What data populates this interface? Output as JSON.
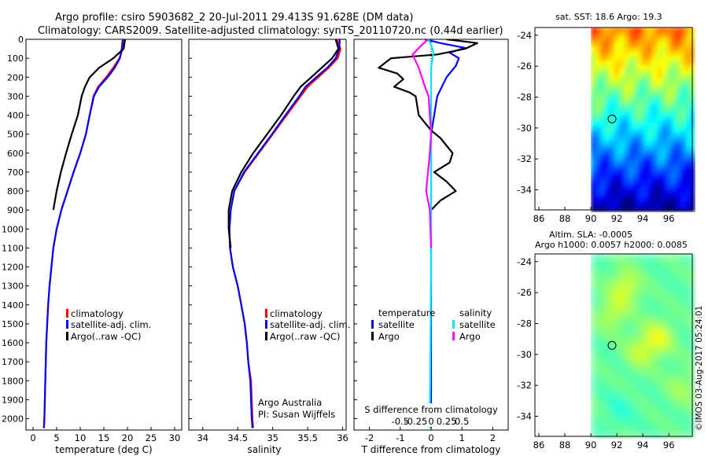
{
  "title": {
    "line1": "Argo profile: csiro 5903682_2 20-Jul-2011 29.413S 91.628E (DM data)",
    "line2": "Climatology: CARS2009. Satellite-adjusted climatology: synTS_20110720.nc (0.44d earlier)"
  },
  "colors": {
    "climatology": "#ff0000",
    "satellite": "#0000ff",
    "argo": "#000000",
    "salinity_satellite": "#00e5ee",
    "salinity_argo": "#ff00ff"
  },
  "watermark": "©IMOS 03-Aug-2017 05:24:01",
  "chart_data": [
    {
      "id": "temperature",
      "type": "line",
      "xlabel": "temperature (deg C)",
      "xlim": [
        -1.5,
        31.5
      ],
      "xticks": [
        0,
        5,
        10,
        15,
        20,
        25,
        30
      ],
      "ylim": [
        2060,
        0
      ],
      "yticks": [
        0,
        100,
        200,
        300,
        400,
        500,
        600,
        700,
        800,
        900,
        1000,
        1100,
        1200,
        1300,
        1400,
        1500,
        1600,
        1700,
        1800,
        1900,
        2000
      ],
      "legend": [
        "climatology",
        "satellite-adj. clim.",
        "Argo(..raw -QC)"
      ],
      "series": [
        {
          "name": "climatology",
          "color": "#ff0000",
          "x": [
            19.4,
            19.0,
            18.3,
            17.0,
            15.5,
            13.8,
            12.8,
            12.0,
            11.2,
            10.0,
            8.6,
            7.3,
            6.0,
            5.0,
            4.3,
            3.9,
            3.5,
            3.2,
            3.0,
            2.8,
            2.6,
            2.4,
            2.3
          ],
          "y": [
            0,
            50,
            100,
            150,
            200,
            250,
            300,
            400,
            500,
            600,
            700,
            800,
            900,
            1000,
            1100,
            1200,
            1300,
            1400,
            1500,
            1600,
            1800,
            2000,
            2050
          ]
        },
        {
          "name": "satellite-adj. clim.",
          "color": "#0000ff",
          "x": [
            19.0,
            18.8,
            18.4,
            17.3,
            15.8,
            14.0,
            12.9,
            12.0,
            11.2,
            10.0,
            8.6,
            7.3,
            6.0,
            5.0,
            4.3,
            3.9,
            3.5,
            3.2,
            3.0,
            2.8,
            2.6,
            2.4,
            2.3
          ],
          "y": [
            0,
            50,
            100,
            150,
            200,
            250,
            300,
            400,
            500,
            600,
            700,
            800,
            900,
            1000,
            1100,
            1200,
            1300,
            1400,
            1500,
            1600,
            1800,
            2000,
            2050
          ]
        },
        {
          "name": "Argo",
          "color": "#000000",
          "x": [
            19.5,
            19.2,
            17.0,
            14.0,
            12.0,
            11.0,
            10.3,
            9.5,
            8.2,
            7.0,
            5.9,
            5.0,
            4.3
          ],
          "y": [
            0,
            50,
            100,
            150,
            200,
            250,
            300,
            400,
            500,
            600,
            700,
            800,
            900
          ]
        }
      ]
    },
    {
      "id": "salinity",
      "type": "line",
      "xlabel": "salinity",
      "xlim": [
        33.8,
        36.05
      ],
      "xticks": [
        34,
        34.5,
        35,
        35.5,
        36
      ],
      "xticklabels": [
        "34",
        "34.5",
        "35",
        "35.5",
        "36"
      ],
      "ylim": [
        2060,
        0
      ],
      "legend": [
        "climatology",
        "satellite-adj. clim.",
        "Argo(..raw -QC)"
      ],
      "annotation": {
        "line1": "Argo Australia",
        "line2": "PI: Susan Wijffels"
      },
      "series": [
        {
          "name": "climatology",
          "color": "#ff0000",
          "x": [
            35.92,
            35.97,
            35.93,
            35.8,
            35.65,
            35.5,
            35.4,
            35.2,
            35.0,
            34.8,
            34.6,
            34.45,
            34.4,
            34.38,
            34.39,
            34.43,
            34.5,
            34.55,
            34.6,
            34.63,
            34.65,
            34.69,
            34.71,
            34.72
          ],
          "y": [
            0,
            50,
            100,
            150,
            200,
            250,
            300,
            400,
            500,
            600,
            700,
            800,
            900,
            1000,
            1100,
            1200,
            1300,
            1400,
            1500,
            1600,
            1700,
            1800,
            2000,
            2050
          ]
        },
        {
          "name": "satellite-adj. clim.",
          "color": "#0000ff",
          "x": [
            35.96,
            35.95,
            35.9,
            35.78,
            35.62,
            35.47,
            35.38,
            35.18,
            34.99,
            34.79,
            34.59,
            34.45,
            34.4,
            34.38,
            34.39,
            34.43,
            34.5,
            34.55,
            34.6,
            34.63,
            34.65,
            34.68,
            34.7,
            34.71
          ],
          "y": [
            0,
            50,
            100,
            150,
            200,
            250,
            300,
            400,
            500,
            600,
            700,
            800,
            900,
            1000,
            1100,
            1200,
            1300,
            1400,
            1500,
            1600,
            1700,
            1800,
            2000,
            2050
          ]
        },
        {
          "name": "Argo",
          "color": "#000000",
          "x": [
            35.9,
            35.94,
            35.85,
            35.7,
            35.55,
            35.4,
            35.3,
            35.12,
            34.92,
            34.72,
            34.55,
            34.42,
            34.37,
            34.37,
            34.4
          ],
          "y": [
            0,
            50,
            100,
            150,
            200,
            250,
            300,
            400,
            500,
            600,
            700,
            800,
            900,
            1000,
            1100
          ]
        }
      ]
    },
    {
      "id": "differences",
      "type": "line",
      "xlabel": "T difference from climatology",
      "xlabel_top": "S difference from climatology",
      "xlim": [
        -2.5,
        2.5
      ],
      "xticks": [
        -2,
        -1,
        0,
        1,
        2
      ],
      "xticks_top": [
        -0.5,
        -0.25,
        0,
        0.25,
        0.5
      ],
      "ylim": [
        2060,
        0
      ],
      "legend": {
        "temperature_heading": "temperature",
        "salinity_heading": "salinity",
        "t_satellite": "satellite",
        "t_argo": "Argo",
        "s_satellite": "satellite",
        "s_argo": "Argo"
      },
      "series": [
        {
          "name": "T satellite",
          "color": "#0000ff",
          "x": [
            -0.2,
            0.3,
            1.1,
            0.6,
            0.9,
            0.8,
            0.5,
            0.2,
            0.0,
            0.0,
            0.0,
            0.0,
            0.0
          ],
          "y": [
            0,
            20,
            45,
            70,
            100,
            140,
            200,
            300,
            500,
            900,
            1200,
            1600,
            2050
          ]
        },
        {
          "name": "T Argo",
          "color": "#000000",
          "x": [
            0.5,
            1.5,
            1.1,
            0.2,
            -1.3,
            -1.7,
            -1.1,
            -0.9,
            -1.2,
            -0.7,
            -0.5,
            -0.4,
            0.0,
            0.3,
            0.7,
            0.6,
            0.1,
            0.5,
            0.8,
            0.3,
            0.0
          ],
          "y": [
            0,
            20,
            50,
            80,
            100,
            150,
            180,
            210,
            250,
            280,
            300,
            400,
            480,
            520,
            600,
            650,
            700,
            750,
            800,
            850,
            900
          ]
        },
        {
          "name": "S satellite",
          "color": "#00e5ee",
          "x": [
            -0.04,
            0.0,
            0.04,
            0.0,
            0.0,
            0.0,
            0.0,
            0.0,
            -0.01,
            -0.02,
            -0.02
          ],
          "y": [
            0,
            30,
            70,
            150,
            300,
            600,
            900,
            1200,
            1600,
            2000,
            2050
          ]
        },
        {
          "name": "S Argo",
          "color": "#ff00ff",
          "x": [
            -0.05,
            -0.15,
            -0.3,
            -0.2,
            -0.1,
            -0.04,
            -0.02,
            0.0,
            -0.02,
            -0.05,
            -0.08,
            -0.02,
            0.0
          ],
          "y": [
            0,
            30,
            80,
            150,
            250,
            300,
            400,
            500,
            600,
            700,
            800,
            900,
            1100
          ]
        }
      ]
    },
    {
      "id": "sst_map",
      "type": "heatmap",
      "title": "sat. SST: 18.6 Argo: 19.3",
      "xticks": [
        86,
        88,
        90,
        92,
        94,
        96
      ],
      "yticks": [
        -24,
        -26,
        -28,
        -30,
        -32,
        -34
      ],
      "lon_range": [
        85.7,
        97.8
      ],
      "lat_range": [
        -35.3,
        -23.5
      ],
      "data_lon_start": 90,
      "marker": {
        "lon": 91.628,
        "lat": -29.413
      }
    },
    {
      "id": "sla_map",
      "type": "heatmap",
      "title_line1": "Altim. SLA: -0.0005",
      "title_line2": "Argo h1000: 0.0057 h2000: 0.0085",
      "xticks": [
        86,
        88,
        90,
        92,
        94,
        96
      ],
      "yticks": [
        -24,
        -26,
        -28,
        -30,
        -32,
        -34
      ],
      "lon_range": [
        85.7,
        97.8
      ],
      "lat_range": [
        -35.3,
        -23.5
      ],
      "data_lon_start": 90,
      "marker": {
        "lon": 91.628,
        "lat": -29.413
      }
    }
  ]
}
